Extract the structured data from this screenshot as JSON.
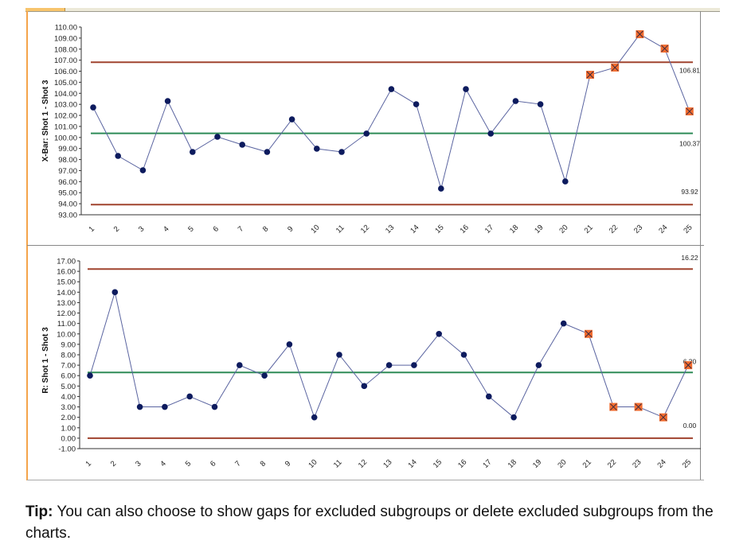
{
  "chart_data": [
    {
      "type": "line",
      "title": "",
      "ylabel": "X-Bar: Shot 1 - Shot 3",
      "xlabel": "",
      "categories": [
        "1",
        "2",
        "3",
        "4",
        "5",
        "6",
        "7",
        "8",
        "9",
        "10",
        "11",
        "12",
        "13",
        "14",
        "15",
        "16",
        "17",
        "18",
        "19",
        "20",
        "21",
        "22",
        "23",
        "24",
        "25"
      ],
      "values": [
        102.72,
        98.33,
        97.03,
        103.3,
        98.69,
        100.06,
        99.34,
        98.69,
        101.64,
        98.98,
        98.69,
        100.35,
        104.38,
        103.01,
        95.37,
        104.38,
        100.35,
        103.3,
        103.01,
        96.02,
        105.68,
        106.33,
        109.35,
        108.05,
        102.36
      ],
      "excluded_points": [
        "21",
        "22",
        "23",
        "24",
        "25"
      ],
      "ylim": [
        93,
        110
      ],
      "yticks": [
        "93.00",
        "94.00",
        "95.00",
        "96.00",
        "97.00",
        "98.00",
        "99.00",
        "100.00",
        "101.00",
        "102.00",
        "103.00",
        "104.00",
        "105.00",
        "106.00",
        "107.00",
        "108.00",
        "109.00",
        "110.00"
      ],
      "control_limits": {
        "ucl": 106.81,
        "center": 100.37,
        "lcl": 93.92
      },
      "limit_labels": {
        "ucl": "106.81",
        "center": "100.37",
        "lcl": "93.92"
      },
      "grid": false,
      "legend": "none"
    },
    {
      "type": "line",
      "title": "",
      "ylabel": "R: Shot 1 - Shot 3",
      "xlabel": "",
      "categories": [
        "1",
        "2",
        "3",
        "4",
        "5",
        "6",
        "7",
        "8",
        "9",
        "10",
        "11",
        "12",
        "13",
        "14",
        "15",
        "16",
        "17",
        "18",
        "19",
        "20",
        "21",
        "22",
        "23",
        "24",
        "25"
      ],
      "values": [
        6,
        14,
        3,
        3,
        4,
        3,
        7,
        6,
        9,
        2,
        8,
        5,
        7,
        7,
        10,
        8,
        4,
        2,
        7,
        11,
        10,
        3,
        3,
        2,
        7
      ],
      "excluded_points": [
        "21",
        "22",
        "23",
        "24",
        "25"
      ],
      "ylim": [
        -1,
        17
      ],
      "yticks": [
        "-1.00",
        "0.00",
        "1.00",
        "2.00",
        "3.00",
        "4.00",
        "5.00",
        "6.00",
        "7.00",
        "8.00",
        "9.00",
        "10.00",
        "11.00",
        "12.00",
        "13.00",
        "14.00",
        "15.00",
        "16.00",
        "17.00"
      ],
      "control_limits": {
        "ucl": 16.22,
        "center": 6.3,
        "lcl": 0.0
      },
      "limit_labels": {
        "ucl": "16.22",
        "center": "6.30",
        "lcl": "0.00"
      },
      "grid": false,
      "legend": "none"
    }
  ],
  "colors": {
    "series_line": "#5a64a0",
    "point": "#0d1b5e",
    "excluded_fill": "#f26c2f",
    "excluded_mark": "#3a2a40",
    "control_limit": "#a0432e",
    "center_line": "#2e8b57"
  },
  "tip": {
    "label": "Tip:",
    "text": " You can also choose to show gaps for excluded subgroups or delete excluded subgroups from the charts."
  }
}
